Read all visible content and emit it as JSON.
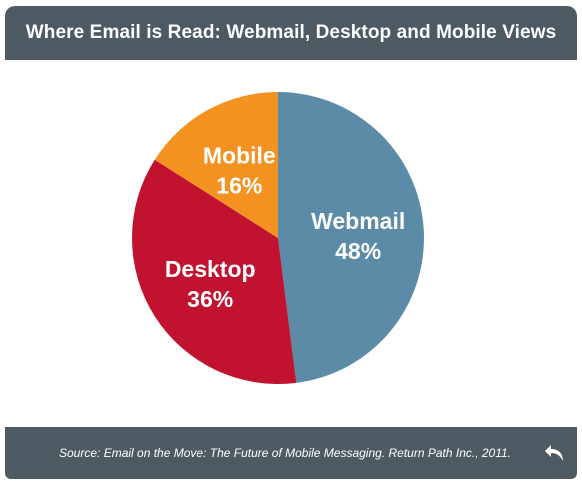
{
  "header": {
    "title": "Where Email is Read: Webmail, Desktop and Mobile Views"
  },
  "footer": {
    "source": "Source: Email on the Move: The Future of Mobile Messaging. Return Path Inc., 2011."
  },
  "icons": {
    "back": "undo-arrow-icon"
  },
  "chart_data": {
    "type": "pie",
    "title": "Where Email is Read: Webmail, Desktop and Mobile Views",
    "slices": [
      {
        "label": "Webmail",
        "value": 48,
        "pct_label": "48%",
        "color": "#5b8ba6"
      },
      {
        "label": "Desktop",
        "value": 36,
        "pct_label": "36%",
        "color": "#c1122f"
      },
      {
        "label": "Mobile",
        "value": 16,
        "pct_label": "16%",
        "color": "#f39220"
      }
    ],
    "start": "12 o'clock",
    "direction": "clockwise"
  }
}
